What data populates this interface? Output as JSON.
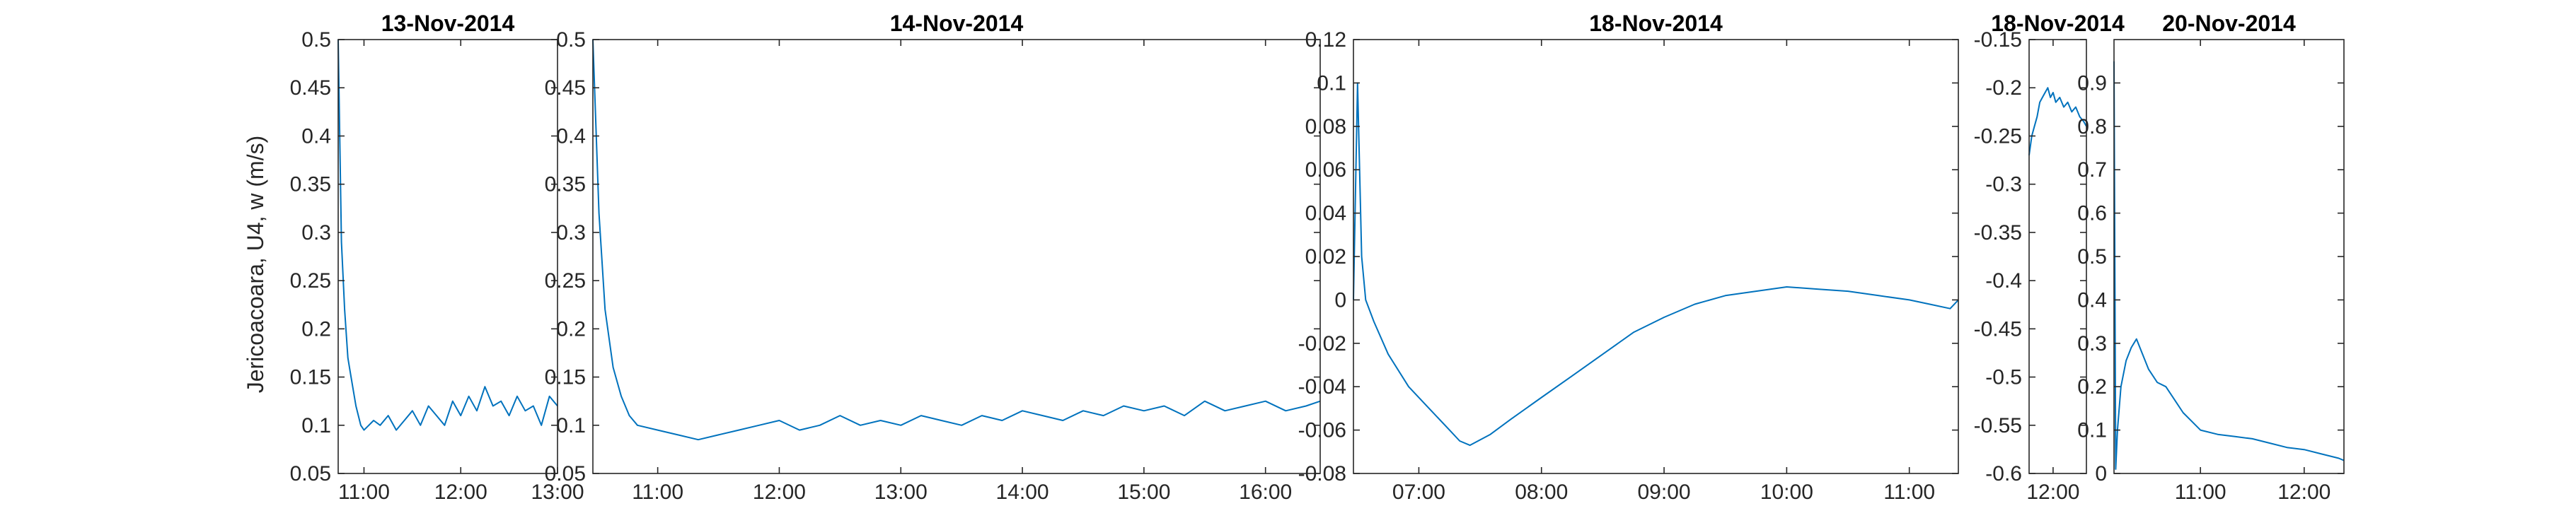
{
  "figure": {
    "ylabel": "Jericoacoara, U4, w (m/s)",
    "line_color": "#0072BD"
  },
  "chart_data": [
    {
      "type": "line",
      "title": "13-Nov-2014",
      "ylim": [
        0.05,
        0.5
      ],
      "yticks": [
        0.05,
        0.1,
        0.15,
        0.2,
        0.25,
        0.3,
        0.35,
        0.4,
        0.45,
        0.5
      ],
      "ytick_labels": [
        "0.05",
        "0.1",
        "0.15",
        "0.2",
        "0.25",
        "0.3",
        "0.35",
        "0.4",
        "0.45",
        "0.5"
      ],
      "xlim": [
        "10:44",
        "13:00"
      ],
      "xticks": [
        "11:00",
        "12:00",
        "13:00"
      ],
      "series": [
        {
          "x": [
            "10:44",
            "10:46",
            "10:48",
            "10:50",
            "10:52",
            "10:55",
            "10:58",
            "11:00",
            "11:03",
            "11:06",
            "11:10",
            "11:15",
            "11:20",
            "11:25",
            "11:30",
            "11:35",
            "11:40",
            "11:45",
            "11:50",
            "11:55",
            "12:00",
            "12:05",
            "12:10",
            "12:15",
            "12:20",
            "12:25",
            "12:30",
            "12:35",
            "12:40",
            "12:45",
            "12:50",
            "12:55",
            "13:00"
          ],
          "y": [
            0.5,
            0.29,
            0.22,
            0.17,
            0.15,
            0.12,
            0.1,
            0.095,
            0.1,
            0.105,
            0.1,
            0.11,
            0.095,
            0.105,
            0.115,
            0.1,
            0.12,
            0.11,
            0.1,
            0.125,
            0.11,
            0.13,
            0.115,
            0.14,
            0.12,
            0.125,
            0.11,
            0.13,
            0.115,
            0.12,
            0.1,
            0.13,
            0.12
          ]
        }
      ]
    },
    {
      "type": "line",
      "title": "14-Nov-2014",
      "ylim": [
        0.05,
        0.5
      ],
      "yticks": [
        0.05,
        0.1,
        0.15,
        0.2,
        0.25,
        0.3,
        0.35,
        0.4,
        0.45,
        0.5
      ],
      "ytick_labels": [
        "0.05",
        "0.1",
        "0.15",
        "0.2",
        "0.25",
        "0.3",
        "0.35",
        "0.4",
        "0.45",
        "0.5"
      ],
      "xlim": [
        "10:28",
        "16:27"
      ],
      "xticks": [
        "11:00",
        "12:00",
        "13:00",
        "14:00",
        "15:00",
        "16:00"
      ],
      "series": [
        {
          "x": [
            "10:28",
            "10:31",
            "10:34",
            "10:38",
            "10:42",
            "10:46",
            "10:50",
            "11:00",
            "11:10",
            "11:20",
            "11:30",
            "11:40",
            "11:50",
            "12:00",
            "12:10",
            "12:20",
            "12:30",
            "12:40",
            "12:50",
            "13:00",
            "13:10",
            "13:20",
            "13:30",
            "13:40",
            "13:50",
            "14:00",
            "14:10",
            "14:20",
            "14:30",
            "14:40",
            "14:50",
            "15:00",
            "15:10",
            "15:20",
            "15:30",
            "15:40",
            "15:50",
            "16:00",
            "16:10",
            "16:20",
            "16:27"
          ],
          "y": [
            0.5,
            0.32,
            0.22,
            0.16,
            0.13,
            0.11,
            0.1,
            0.095,
            0.09,
            0.085,
            0.09,
            0.095,
            0.1,
            0.105,
            0.095,
            0.1,
            0.11,
            0.1,
            0.105,
            0.1,
            0.11,
            0.105,
            0.1,
            0.11,
            0.105,
            0.115,
            0.11,
            0.105,
            0.115,
            0.11,
            0.12,
            0.115,
            0.12,
            0.11,
            0.125,
            0.115,
            0.12,
            0.125,
            0.115,
            0.12,
            0.125
          ]
        }
      ]
    },
    {
      "type": "line",
      "title": "18-Nov-2014",
      "ylim": [
        -0.08,
        0.12
      ],
      "yticks": [
        -0.08,
        -0.06,
        -0.04,
        -0.02,
        0,
        0.02,
        0.04,
        0.06,
        0.08,
        0.1,
        0.12
      ],
      "ytick_labels": [
        "-0.08",
        "-0.06",
        "-0.04",
        "-0.02",
        "0",
        "0.02",
        "0.04",
        "0.06",
        "0.08",
        "0.1",
        "0.12"
      ],
      "xlim": [
        "06:28",
        "11:24"
      ],
      "xticks": [
        "07:00",
        "08:00",
        "09:00",
        "10:00",
        "11:00"
      ],
      "series": [
        {
          "x": [
            "06:28",
            "06:30",
            "06:32",
            "06:34",
            "06:38",
            "06:45",
            "06:55",
            "07:05",
            "07:15",
            "07:20",
            "07:25",
            "07:35",
            "07:45",
            "08:00",
            "08:15",
            "08:30",
            "08:45",
            "09:00",
            "09:15",
            "09:30",
            "09:45",
            "10:00",
            "10:15",
            "10:30",
            "10:45",
            "11:00",
            "11:10",
            "11:20",
            "11:24"
          ],
          "y": [
            0.0,
            0.1,
            0.02,
            0.0,
            -0.01,
            -0.025,
            -0.04,
            -0.05,
            -0.06,
            -0.065,
            -0.067,
            -0.062,
            -0.055,
            -0.045,
            -0.035,
            -0.025,
            -0.015,
            -0.008,
            -0.002,
            0.002,
            0.004,
            0.006,
            0.005,
            0.004,
            0.002,
            0.0,
            -0.002,
            -0.004,
            0.0
          ]
        }
      ]
    },
    {
      "type": "line",
      "title": "18-Nov-2014",
      "ylim": [
        -0.6,
        -0.15
      ],
      "yticks": [
        -0.6,
        -0.55,
        -0.5,
        -0.45,
        -0.4,
        -0.35,
        -0.3,
        -0.25,
        -0.2,
        -0.15
      ],
      "ytick_labels": [
        "-0.6",
        "-0.55",
        "-0.5",
        "-0.45",
        "-0.4",
        "-0.35",
        "-0.3",
        "-0.25",
        "-0.2",
        "-0.15"
      ],
      "xlim": [
        "11:42",
        "12:25"
      ],
      "xticks": [
        "12:00"
      ],
      "series": [
        {
          "x": [
            "11:42",
            "11:44",
            "11:46",
            "11:48",
            "11:50",
            "11:52",
            "11:54",
            "11:56",
            "11:58",
            "12:00",
            "12:02",
            "12:05",
            "12:08",
            "12:11",
            "12:14",
            "12:17",
            "12:20",
            "12:23",
            "12:25"
          ],
          "y": [
            -0.27,
            -0.25,
            -0.24,
            -0.23,
            -0.215,
            -0.21,
            -0.205,
            -0.2,
            -0.21,
            -0.205,
            -0.215,
            -0.21,
            -0.22,
            -0.215,
            -0.225,
            -0.22,
            -0.23,
            -0.235,
            -0.24
          ]
        }
      ]
    },
    {
      "type": "line",
      "title": "20-Nov-2014",
      "ylim": [
        0,
        1
      ],
      "yticks": [
        0,
        0.1,
        0.2,
        0.3,
        0.4,
        0.5,
        0.6,
        0.7,
        0.8,
        0.9
      ],
      "ytick_labels": [
        "0",
        "0.1",
        "0.2",
        "0.3",
        "0.4",
        "0.5",
        "0.6",
        "0.7",
        "0.8",
        "0.9"
      ],
      "xlim": [
        "10:10",
        "12:23"
      ],
      "xticks": [
        "11:00",
        "12:00"
      ],
      "series": [
        {
          "x": [
            "10:10",
            "10:11",
            "10:12",
            "10:14",
            "10:17",
            "10:20",
            "10:23",
            "10:26",
            "10:30",
            "10:35",
            "10:40",
            "10:45",
            "10:50",
            "10:55",
            "11:00",
            "11:10",
            "11:20",
            "11:30",
            "11:40",
            "11:50",
            "12:00",
            "12:10",
            "12:20",
            "12:23"
          ],
          "y": [
            0.95,
            0.01,
            0.1,
            0.2,
            0.26,
            0.29,
            0.31,
            0.28,
            0.24,
            0.21,
            0.2,
            0.17,
            0.14,
            0.12,
            0.1,
            0.09,
            0.085,
            0.08,
            0.07,
            0.06,
            0.055,
            0.045,
            0.035,
            0.03
          ]
        }
      ]
    }
  ]
}
